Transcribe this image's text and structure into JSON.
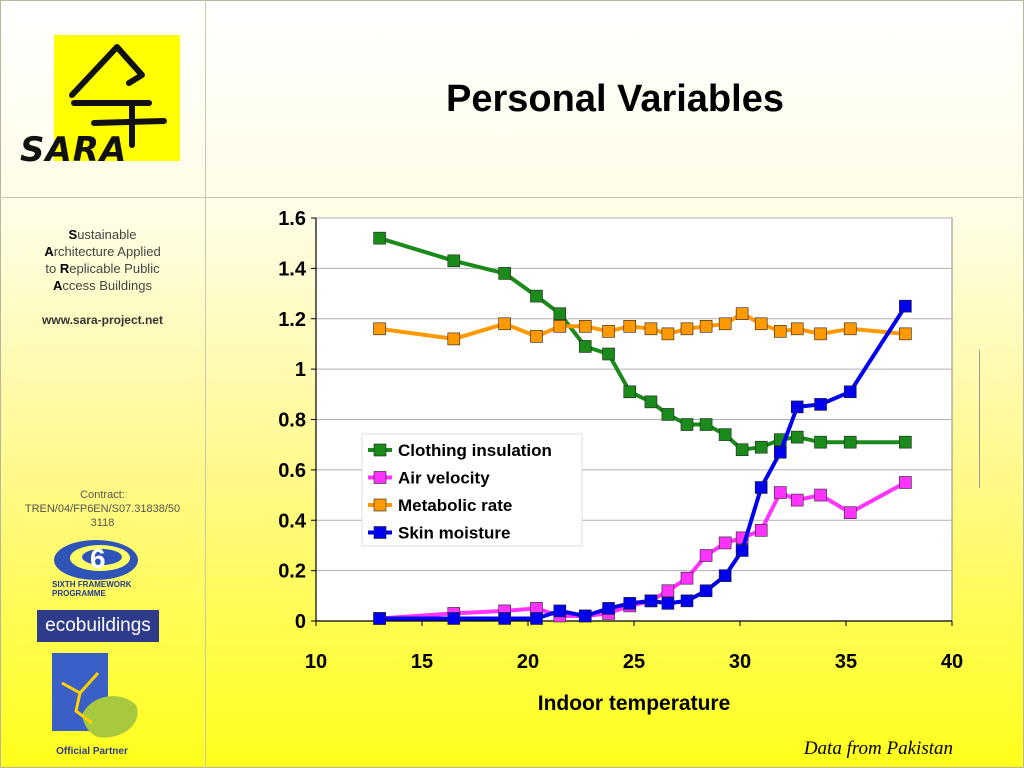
{
  "slide": {
    "title": "Personal Variables",
    "logo_text": "SARA",
    "sidebar_lines": [
      {
        "first": "S",
        "rest": "ustainable"
      },
      {
        "first": "A",
        "rest": "rchitecture Applied"
      },
      {
        "prefix": "to ",
        "first": "R",
        "rest": "eplicable Public"
      },
      {
        "first": "A",
        "rest": "ccess Buildings"
      }
    ],
    "website": "www.sara-project.net",
    "contract": [
      "Contract:",
      "TREN/04/FP6EN/S07.31838/50",
      "3118"
    ],
    "sixth_framework": [
      "SIXTH FRAMEWORK",
      "PROGRAMME"
    ],
    "ecobuildings": "ecobuildings",
    "official_partner": "Official Partner",
    "footnote": "Data from Pakistan"
  },
  "chart_data": {
    "type": "line",
    "title": "",
    "xlabel": "Indoor temperature",
    "ylabel": "",
    "xlim": [
      10,
      40
    ],
    "ylim": [
      0,
      1.6
    ],
    "xticks": [
      "10",
      "15",
      "20",
      "25",
      "30",
      "35",
      "40"
    ],
    "yticks": [
      "0",
      "0.2",
      "0.4",
      "0.6",
      "0.8",
      "1",
      "1.2",
      "1.4",
      "1.6"
    ],
    "grid": true,
    "legend_position": "center-left",
    "series": [
      {
        "name": "Clothing insulation",
        "color": "#1a8a1a",
        "points": [
          [
            13,
            1.52
          ],
          [
            16.5,
            1.43
          ],
          [
            18.9,
            1.38
          ],
          [
            20.4,
            1.29
          ],
          [
            21.5,
            1.22
          ],
          [
            22.7,
            1.09
          ],
          [
            23.8,
            1.06
          ],
          [
            24.8,
            0.91
          ],
          [
            25.8,
            0.87
          ],
          [
            26.6,
            0.82
          ],
          [
            27.5,
            0.78
          ],
          [
            28.4,
            0.78
          ],
          [
            29.3,
            0.74
          ],
          [
            30.1,
            0.68
          ],
          [
            31,
            0.69
          ],
          [
            31.9,
            0.72
          ],
          [
            32.7,
            0.73
          ],
          [
            33.8,
            0.71
          ],
          [
            35.2,
            0.71
          ],
          [
            37.8,
            0.71
          ]
        ]
      },
      {
        "name": "Air velocity",
        "color": "#ff33ff",
        "points": [
          [
            13,
            0.01
          ],
          [
            16.5,
            0.03
          ],
          [
            18.9,
            0.04
          ],
          [
            20.4,
            0.05
          ],
          [
            21.5,
            0.02
          ],
          [
            22.7,
            0.02
          ],
          [
            23.8,
            0.03
          ],
          [
            24.8,
            0.06
          ],
          [
            25.8,
            0.08
          ],
          [
            26.6,
            0.12
          ],
          [
            27.5,
            0.17
          ],
          [
            28.4,
            0.26
          ],
          [
            29.3,
            0.31
          ],
          [
            30.1,
            0.33
          ],
          [
            31,
            0.36
          ],
          [
            31.9,
            0.51
          ],
          [
            32.7,
            0.48
          ],
          [
            33.8,
            0.5
          ],
          [
            35.2,
            0.43
          ],
          [
            37.8,
            0.55
          ]
        ]
      },
      {
        "name": "Metabolic rate",
        "color": "#ff9900",
        "points": [
          [
            13,
            1.16
          ],
          [
            16.5,
            1.12
          ],
          [
            18.9,
            1.18
          ],
          [
            20.4,
            1.13
          ],
          [
            21.5,
            1.17
          ],
          [
            22.7,
            1.17
          ],
          [
            23.8,
            1.15
          ],
          [
            24.8,
            1.17
          ],
          [
            25.8,
            1.16
          ],
          [
            26.6,
            1.14
          ],
          [
            27.5,
            1.16
          ],
          [
            28.4,
            1.17
          ],
          [
            29.3,
            1.18
          ],
          [
            30.1,
            1.22
          ],
          [
            31,
            1.18
          ],
          [
            31.9,
            1.15
          ],
          [
            32.7,
            1.16
          ],
          [
            33.8,
            1.14
          ],
          [
            35.2,
            1.16
          ],
          [
            37.8,
            1.14
          ]
        ]
      },
      {
        "name": "Skin moisture",
        "color": "#0000ee",
        "points": [
          [
            13,
            0.01
          ],
          [
            16.5,
            0.01
          ],
          [
            18.9,
            0.01
          ],
          [
            20.4,
            0.01
          ],
          [
            21.5,
            0.04
          ],
          [
            22.7,
            0.02
          ],
          [
            23.8,
            0.05
          ],
          [
            24.8,
            0.07
          ],
          [
            25.8,
            0.08
          ],
          [
            26.6,
            0.07
          ],
          [
            27.5,
            0.08
          ],
          [
            28.4,
            0.12
          ],
          [
            29.3,
            0.18
          ],
          [
            30.1,
            0.28
          ],
          [
            31,
            0.53
          ],
          [
            31.9,
            0.67
          ],
          [
            32.7,
            0.85
          ],
          [
            33.8,
            0.86
          ],
          [
            35.2,
            0.91
          ],
          [
            37.8,
            1.25
          ]
        ]
      }
    ]
  }
}
